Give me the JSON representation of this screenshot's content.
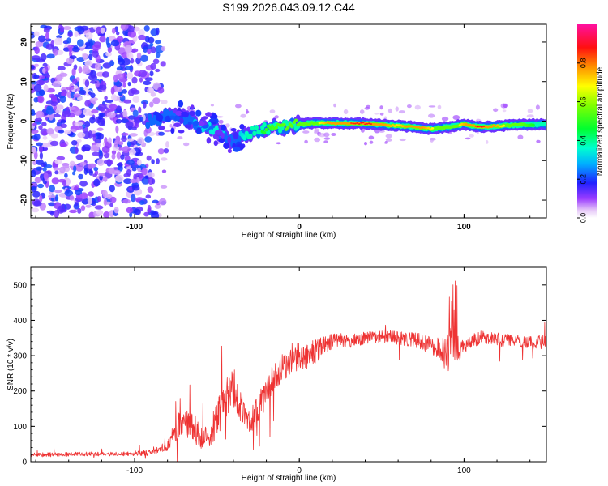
{
  "title": "S199.2026.043.09.12.C44",
  "colors": {
    "snr_line": "#ee3333",
    "axis": "#000000",
    "scatter_purple": "#8a3ce6",
    "ridge_cyan": "#20d0e8",
    "ridge_green": "#3ee02a",
    "ridge_red": "#ff2a2a"
  },
  "chart_data": [
    {
      "type": "heatmap",
      "title": "",
      "xlabel": "Height of straight line (km)",
      "ylabel": "Frequency (Hz)",
      "xlim": [
        -163,
        150
      ],
      "ylim": [
        -24.5,
        24.5
      ],
      "xticks": [
        -100,
        0,
        100
      ],
      "yticks": [
        -20,
        -10,
        0,
        10,
        20
      ],
      "colorbar": {
        "label": "Normalized spectral amplitude",
        "range": [
          0,
          1
        ],
        "ticks": [
          0.0,
          0.2,
          0.4,
          0.6,
          0.8
        ],
        "colormap": "hsv-rainbow"
      },
      "ridge": [
        {
          "x": -90,
          "y": 0.0,
          "amp": 0.25
        },
        {
          "x": -80,
          "y": 1.5,
          "amp": 0.28
        },
        {
          "x": -70,
          "y": 1.0,
          "amp": 0.3
        },
        {
          "x": -60,
          "y": -1.0,
          "amp": 0.32
        },
        {
          "x": -50,
          "y": -2.5,
          "amp": 0.35
        },
        {
          "x": -40,
          "y": -5.0,
          "amp": 0.25
        },
        {
          "x": -30,
          "y": -3.0,
          "amp": 0.4
        },
        {
          "x": -20,
          "y": -1.8,
          "amp": 0.5
        },
        {
          "x": -10,
          "y": -1.5,
          "amp": 0.55
        },
        {
          "x": 0,
          "y": -0.8,
          "amp": 0.6
        },
        {
          "x": 10,
          "y": -0.5,
          "amp": 0.65
        },
        {
          "x": 20,
          "y": -0.5,
          "amp": 0.8
        },
        {
          "x": 40,
          "y": -0.6,
          "amp": 0.9
        },
        {
          "x": 60,
          "y": -1.2,
          "amp": 0.7
        },
        {
          "x": 70,
          "y": -1.5,
          "amp": 0.85
        },
        {
          "x": 80,
          "y": -2.0,
          "amp": 0.7
        },
        {
          "x": 90,
          "y": -1.5,
          "amp": 0.55
        },
        {
          "x": 100,
          "y": -0.8,
          "amp": 0.75
        },
        {
          "x": 110,
          "y": -1.5,
          "amp": 0.9
        },
        {
          "x": 130,
          "y": -1.0,
          "amp": 0.6
        },
        {
          "x": 150,
          "y": -0.8,
          "amp": 0.4
        }
      ],
      "noise_region": {
        "xrange": [
          -163,
          -80
        ],
        "yrange": [
          -24,
          24
        ],
        "amp_range": [
          0.03,
          0.22
        ]
      }
    },
    {
      "type": "line",
      "title": "",
      "xlabel": "Height of straight line (km)",
      "ylabel": "SNR (10 * v/v)",
      "xlim": [
        -163,
        150
      ],
      "ylim": [
        0,
        550
      ],
      "xticks": [
        -100,
        0,
        100
      ],
      "yticks": [
        0,
        100,
        200,
        300,
        400,
        500
      ],
      "series": [
        {
          "name": "SNR",
          "x": [
            -163,
            -150,
            -130,
            -110,
            -90,
            -80,
            -75,
            -70,
            -65,
            -60,
            -55,
            -50,
            -45,
            -40,
            -35,
            -30,
            -25,
            -20,
            -15,
            -10,
            -5,
            0,
            5,
            10,
            15,
            20,
            25,
            30,
            40,
            50,
            60,
            70,
            80,
            85,
            90,
            93,
            95,
            97,
            100,
            110,
            120,
            130,
            140,
            150
          ],
          "values": [
            20,
            20,
            22,
            22,
            25,
            45,
            90,
            120,
            100,
            70,
            70,
            120,
            170,
            210,
            150,
            110,
            150,
            200,
            240,
            270,
            290,
            300,
            300,
            310,
            330,
            340,
            345,
            340,
            350,
            355,
            350,
            345,
            330,
            320,
            300,
            380,
            340,
            310,
            330,
            350,
            345,
            340,
            335,
            340
          ],
          "noise": [
            6,
            6,
            6,
            6,
            8,
            15,
            35,
            45,
            45,
            35,
            35,
            50,
            60,
            60,
            45,
            40,
            40,
            45,
            45,
            45,
            45,
            40,
            40,
            35,
            25,
            22,
            20,
            18,
            18,
            18,
            20,
            22,
            25,
            30,
            60,
            80,
            60,
            30,
            22,
            20,
            20,
            20,
            20,
            20
          ]
        }
      ]
    }
  ]
}
